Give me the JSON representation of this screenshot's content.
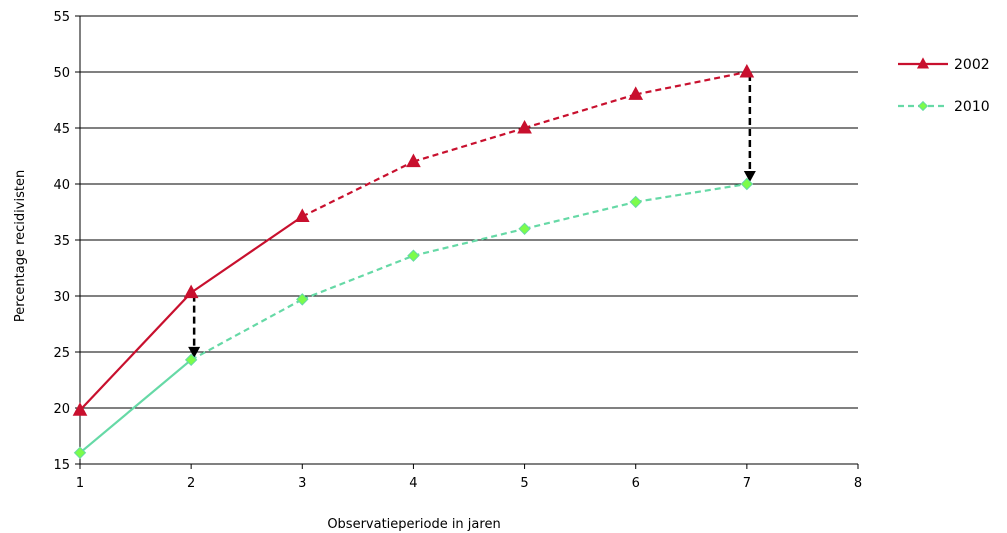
{
  "chart_data": {
    "type": "line",
    "title": "",
    "xlabel": "Observatieperiode in jaren",
    "ylabel": "Percentage recidivisten",
    "xlim": [
      1,
      8
    ],
    "ylim": [
      15,
      55
    ],
    "xticks": [
      "1",
      "2",
      "3",
      "4",
      "5",
      "6",
      "7",
      "8"
    ],
    "yticks": [
      "15",
      "20",
      "25",
      "30",
      "35",
      "40",
      "45",
      "50",
      "55"
    ],
    "grid": "horizontal",
    "legend_position": "right",
    "series": [
      {
        "name": "2002",
        "color": "#c8102e",
        "marker": "triangle",
        "x": [
          1,
          2,
          3,
          4,
          5,
          6,
          7
        ],
        "values": [
          19.8,
          30.3,
          37.1,
          42.0,
          45.0,
          48.0,
          50.0
        ],
        "solid_until_x": 3
      },
      {
        "name": "2010",
        "color": "#66d9a6",
        "marker_fill": "#7cfc4a",
        "marker": "diamond",
        "x": [
          1,
          2,
          3,
          4,
          5,
          6,
          7
        ],
        "values": [
          16.0,
          24.3,
          29.7,
          33.6,
          36.0,
          38.4,
          40.0
        ],
        "solid_until_x": 2
      }
    ],
    "annotations": [
      {
        "type": "arrow",
        "x": 2,
        "from": 30.3,
        "to": 24.3,
        "style": "dashed"
      },
      {
        "type": "arrow",
        "x": 7,
        "from": 50.0,
        "to": 40.0,
        "style": "dashed"
      }
    ]
  }
}
